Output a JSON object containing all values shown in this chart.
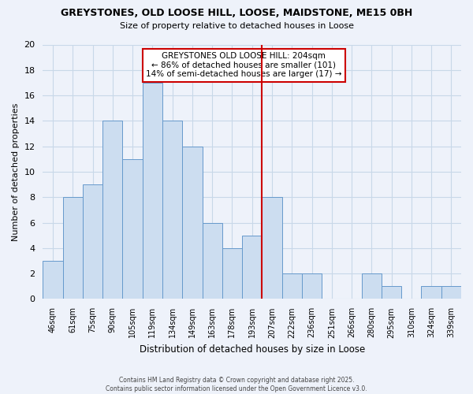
{
  "title": "GREYSTONES, OLD LOOSE HILL, LOOSE, MAIDSTONE, ME15 0BH",
  "subtitle": "Size of property relative to detached houses in Loose",
  "xlabel": "Distribution of detached houses by size in Loose",
  "ylabel": "Number of detached properties",
  "bin_labels": [
    "46sqm",
    "61sqm",
    "75sqm",
    "90sqm",
    "105sqm",
    "119sqm",
    "134sqm",
    "149sqm",
    "163sqm",
    "178sqm",
    "193sqm",
    "207sqm",
    "222sqm",
    "236sqm",
    "251sqm",
    "266sqm",
    "280sqm",
    "295sqm",
    "310sqm",
    "324sqm",
    "339sqm"
  ],
  "bar_heights": [
    3,
    8,
    9,
    14,
    11,
    17,
    14,
    12,
    6,
    4,
    5,
    8,
    2,
    2,
    0,
    0,
    2,
    1,
    0,
    1,
    1
  ],
  "bar_color": "#ccddf0",
  "bar_edgecolor": "#6699cc",
  "marker_bin_index": 11,
  "marker_color": "#cc0000",
  "ylim": [
    0,
    20
  ],
  "yticks": [
    0,
    2,
    4,
    6,
    8,
    10,
    12,
    14,
    16,
    18,
    20
  ],
  "annotation_title": "GREYSTONES OLD LOOSE HILL: 204sqm",
  "annotation_line1": "← 86% of detached houses are smaller (101)",
  "annotation_line2": "14% of semi-detached houses are larger (17) →",
  "annotation_box_edgecolor": "#cc0000",
  "grid_color": "#c8d8e8",
  "background_color": "#eef2fa",
  "footnote1": "Contains HM Land Registry data © Crown copyright and database right 2025.",
  "footnote2": "Contains public sector information licensed under the Open Government Licence v3.0."
}
